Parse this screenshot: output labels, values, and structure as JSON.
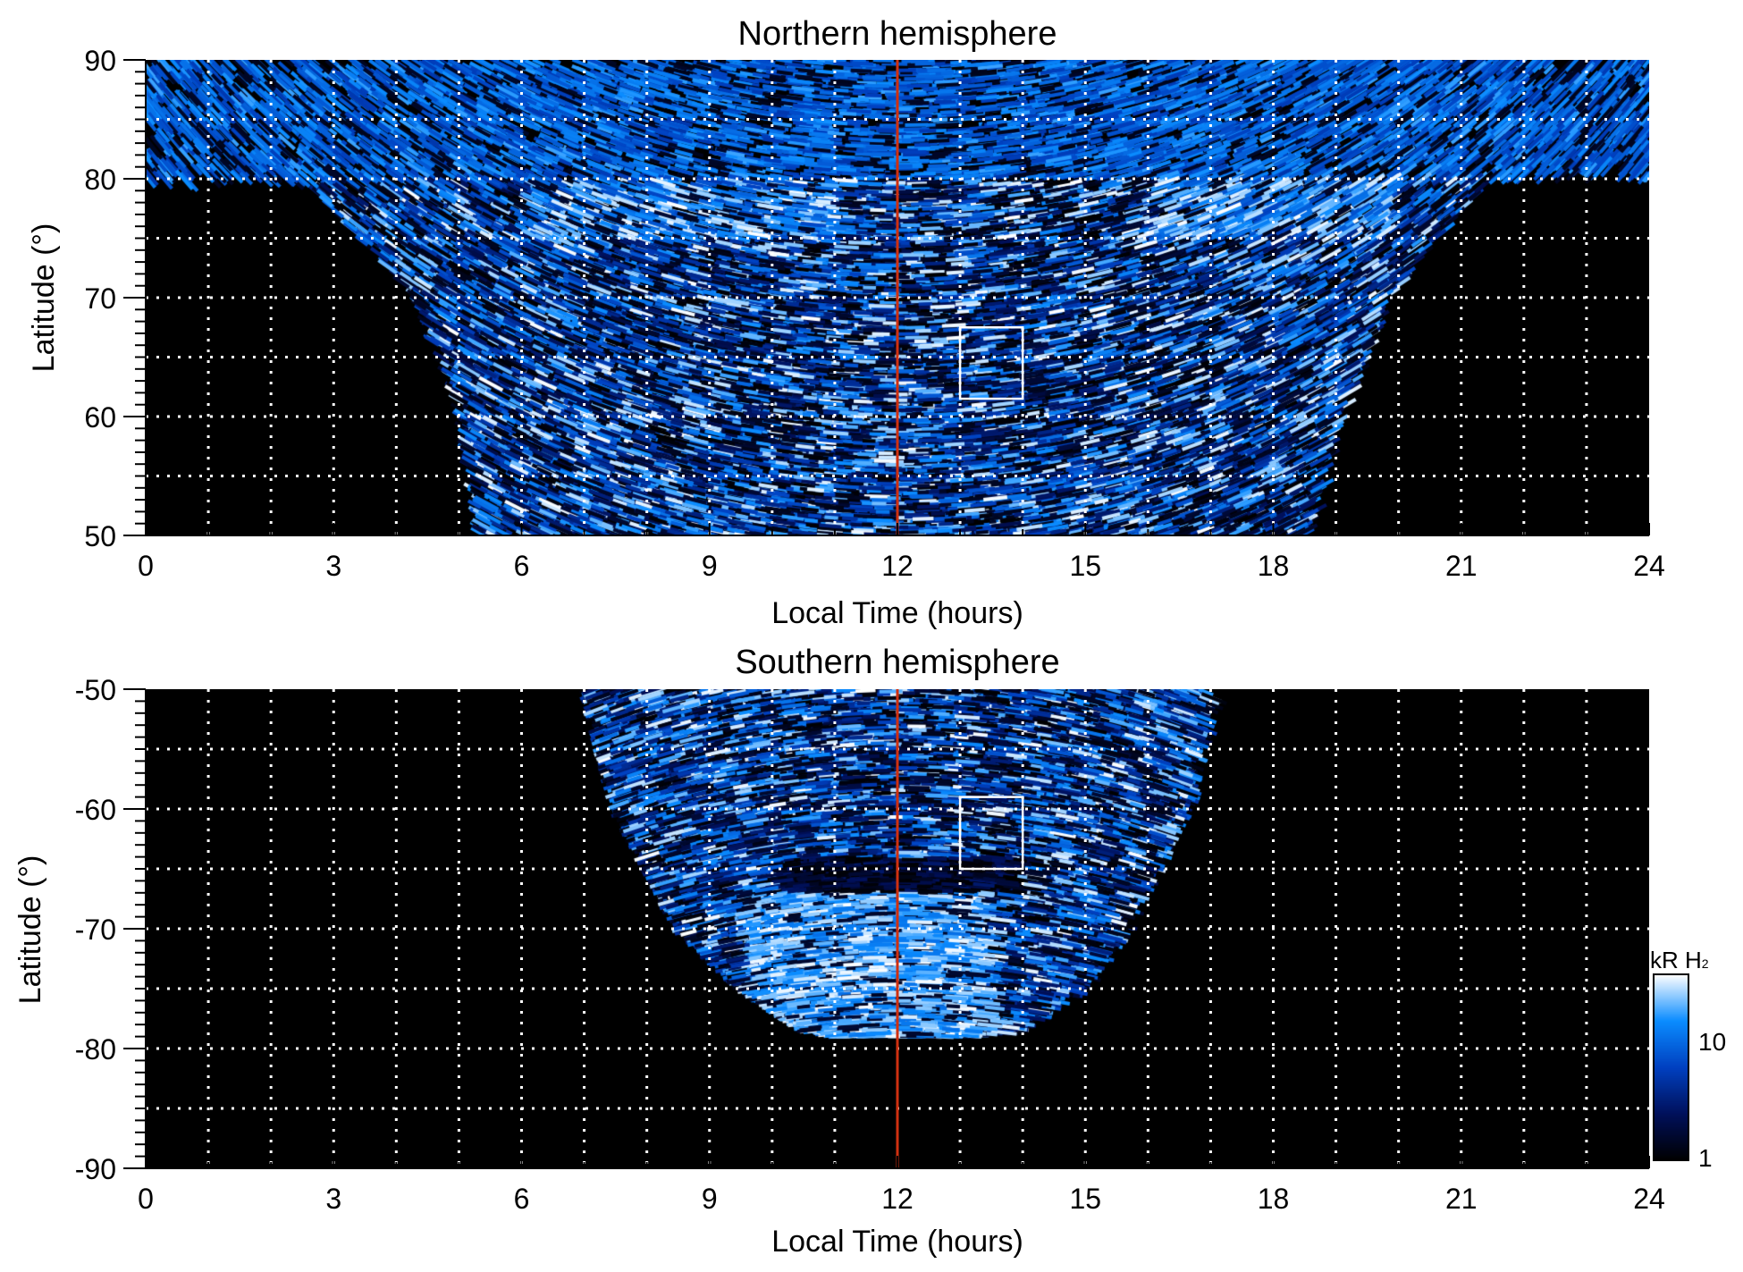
{
  "chart_data": [
    {
      "type": "heatmap",
      "title": "Northern hemisphere",
      "xlabel": "Local Time (hours)",
      "ylabel": "Latitude (°)",
      "xlim": [
        0,
        24
      ],
      "ylim": [
        50,
        90
      ],
      "xticks": [
        "0",
        "3",
        "6",
        "9",
        "12",
        "15",
        "18",
        "21",
        "24"
      ],
      "yticks": [
        "50",
        "60",
        "70",
        "80",
        "90"
      ],
      "grid": true,
      "reference_line_lt": 12,
      "box": {
        "lt": [
          13,
          14
        ],
        "lat": [
          61.5,
          67.5
        ]
      }
    },
    {
      "type": "heatmap",
      "title": "Southern hemisphere",
      "xlabel": "Local Time (hours)",
      "ylabel": "Latitude (°)",
      "xlim": [
        0,
        24
      ],
      "ylim": [
        -90,
        -50
      ],
      "xticks": [
        "0",
        "3",
        "6",
        "9",
        "12",
        "15",
        "18",
        "21",
        "24"
      ],
      "yticks": [
        "-90",
        "-80",
        "-70",
        "-60",
        "-50"
      ],
      "grid": true,
      "reference_line_lt": 12,
      "box": {
        "lt": [
          13,
          14
        ],
        "lat": [
          -65,
          -59
        ]
      }
    }
  ],
  "colorbar": {
    "label": "kR H",
    "label_sub": "2",
    "scale": "log",
    "range": [
      1,
      30
    ],
    "ticks": [
      "1",
      "10"
    ],
    "colors": [
      "#000000",
      "#00105a",
      "#0040c0",
      "#0a8cff",
      "#ffffff"
    ]
  },
  "colors": {
    "reference_line": "#d03010",
    "box": "#ffffff",
    "grid": "#ffffff"
  }
}
